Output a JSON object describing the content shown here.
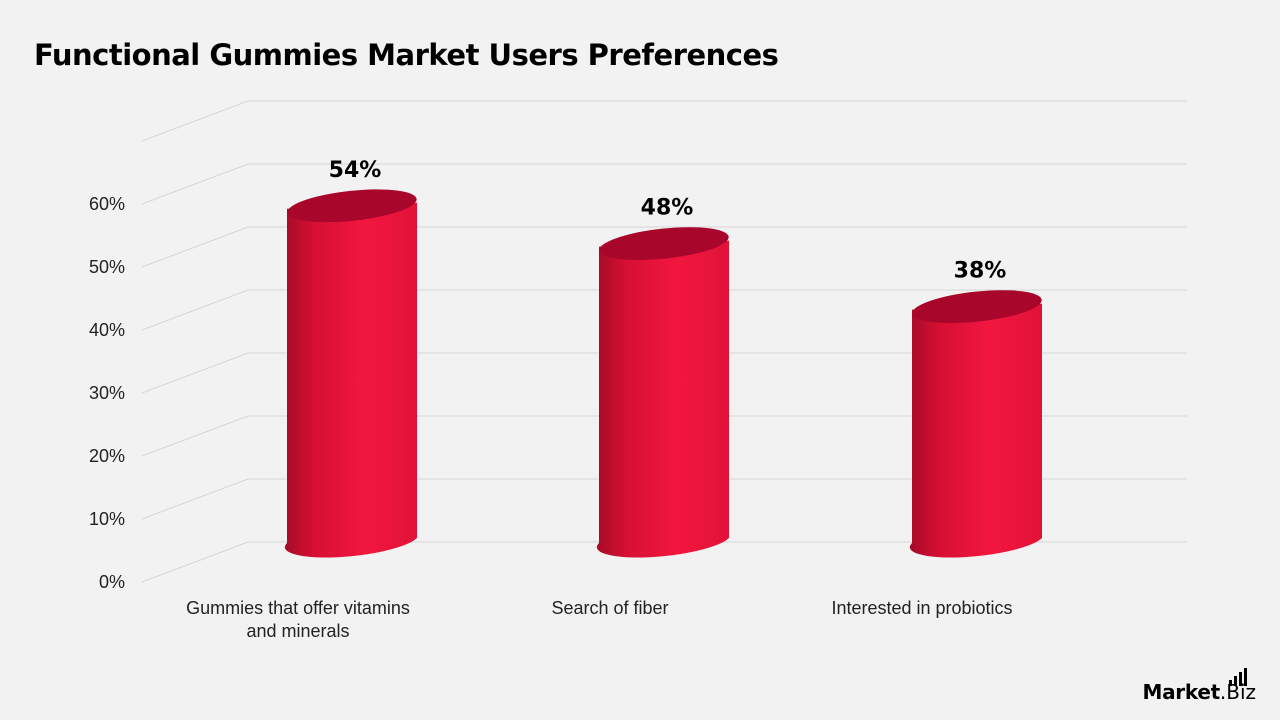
{
  "title": "Functional Gummies Market Users Preferences",
  "brand": {
    "market": "Market",
    "biz": ".Biz"
  },
  "colors": {
    "bar": "#e8113a",
    "bar_dark": "#a8062a",
    "grid": "#d6d6d6",
    "background": "#f2f2f2"
  },
  "chart_data": {
    "type": "bar",
    "style": "3d-cylinder",
    "categories": [
      [
        "Gummies that offer vitamins",
        "and minerals"
      ],
      [
        "Search of fiber"
      ],
      [
        "Interested in probiotics"
      ]
    ],
    "values": [
      54,
      48,
      38
    ],
    "data_labels": [
      "54%",
      "48%",
      "38%"
    ],
    "y_ticks": [
      "0%",
      "10%",
      "20%",
      "30%",
      "40%",
      "50%",
      "60%"
    ],
    "ylim": [
      0,
      70
    ],
    "grid": true,
    "legend": "none"
  }
}
